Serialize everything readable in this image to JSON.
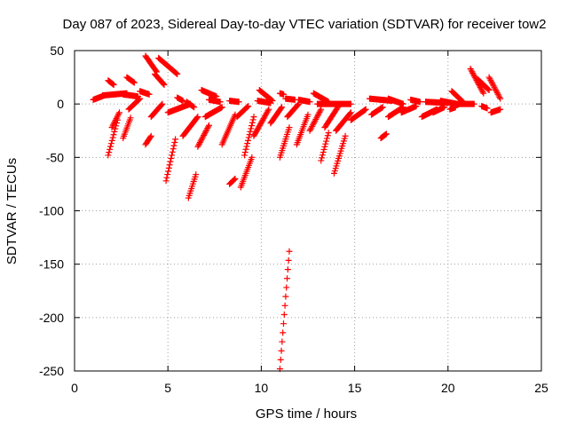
{
  "chart_data": {
    "type": "scatter",
    "title": "Day 087 of 2023, Sidereal Day-to-day VTEC variation (SDTVAR) for receiver tow2",
    "xlabel": "GPS time / hours",
    "ylabel": "SDTVAR / TECUs",
    "xlim": [
      0,
      25
    ],
    "ylim": [
      -250,
      50
    ],
    "xticks": [
      0,
      5,
      10,
      15,
      20,
      25
    ],
    "yticks": [
      50,
      0,
      -50,
      -100,
      -150,
      -200,
      -250
    ],
    "grid": true,
    "marker": "+",
    "color": "#ff0000",
    "segments": [
      {
        "x": [
          1.0,
          1.6
        ],
        "y": [
          4,
          8
        ]
      },
      {
        "x": [
          1.5,
          2.8
        ],
        "y": [
          8,
          10
        ]
      },
      {
        "x": [
          1.8,
          2.1
        ],
        "y": [
          22,
          18
        ]
      },
      {
        "x": [
          2.6,
          3.4
        ],
        "y": [
          9,
          7
        ]
      },
      {
        "x": [
          2.8,
          3.2
        ],
        "y": [
          25,
          20
        ]
      },
      {
        "x": [
          3.8,
          4.4
        ],
        "y": [
          45,
          30
        ]
      },
      {
        "x": [
          4.3,
          4.8
        ],
        "y": [
          28,
          18
        ]
      },
      {
        "x": [
          4.5,
          5.5
        ],
        "y": [
          43,
          28
        ]
      },
      {
        "x": [
          3.5,
          4.0
        ],
        "y": [
          12,
          9
        ]
      },
      {
        "x": [
          5.5,
          5.8
        ],
        "y": [
          6,
          3
        ]
      },
      {
        "x": [
          6.0,
          6.4
        ],
        "y": [
          2,
          -3
        ]
      },
      {
        "x": [
          6.8,
          7.6
        ],
        "y": [
          13,
          7
        ]
      },
      {
        "x": [
          7.2,
          7.8
        ],
        "y": [
          4,
          2
        ]
      },
      {
        "x": [
          8.3,
          8.8
        ],
        "y": [
          3,
          2
        ]
      },
      {
        "x": [
          9.8,
          10.5
        ],
        "y": [
          3,
          1
        ]
      },
      {
        "x": [
          9.9,
          10.6
        ],
        "y": [
          13,
          3
        ]
      },
      {
        "x": [
          11.0,
          11.2
        ],
        "y": [
          10,
          9
        ]
      },
      {
        "x": [
          11.3,
          11.8
        ],
        "y": [
          5,
          4
        ]
      },
      {
        "x": [
          12.0,
          12.6
        ],
        "y": [
          4,
          2
        ]
      },
      {
        "x": [
          12.8,
          13.6
        ],
        "y": [
          10,
          2
        ]
      },
      {
        "x": [
          13.0,
          14.8
        ],
        "y": [
          0,
          0
        ]
      },
      {
        "x": [
          15.8,
          17.0
        ],
        "y": [
          5,
          3
        ]
      },
      {
        "x": [
          16.8,
          17.6
        ],
        "y": [
          5,
          0
        ]
      },
      {
        "x": [
          18.0,
          18.5
        ],
        "y": [
          4,
          2
        ]
      },
      {
        "x": [
          18.8,
          20.0
        ],
        "y": [
          2,
          1
        ]
      },
      {
        "x": [
          19.6,
          20.5
        ],
        "y": [
          3,
          0
        ]
      },
      {
        "x": [
          20.2,
          20.8
        ],
        "y": [
          12,
          2
        ]
      },
      {
        "x": [
          20.5,
          21.4
        ],
        "y": [
          0,
          0
        ]
      },
      {
        "x": [
          21.2,
          21.9
        ],
        "y": [
          33,
          10
        ]
      },
      {
        "x": [
          21.6,
          22.2
        ],
        "y": [
          23,
          13
        ]
      },
      {
        "x": [
          22.2,
          22.8
        ],
        "y": [
          25,
          5
        ]
      },
      {
        "x": [
          22.3,
          22.8
        ],
        "y": [
          -8,
          -5
        ]
      },
      {
        "x": [
          21.8,
          22.1
        ],
        "y": [
          -2,
          -4
        ]
      },
      {
        "x": [
          1.8,
          2.3
        ],
        "y": [
          -48,
          -15
        ]
      },
      {
        "x": [
          2.0,
          2.4
        ],
        "y": [
          -22,
          -8
        ]
      },
      {
        "x": [
          2.6,
          3.0
        ],
        "y": [
          -32,
          -13
        ]
      },
      {
        "x": [
          2.9,
          3.5
        ],
        "y": [
          -5,
          5
        ]
      },
      {
        "x": [
          3.8,
          4.1
        ],
        "y": [
          -38,
          -30
        ]
      },
      {
        "x": [
          4.1,
          4.7
        ],
        "y": [
          -12,
          0
        ]
      },
      {
        "x": [
          4.9,
          5.4
        ],
        "y": [
          -72,
          -33
        ]
      },
      {
        "x": [
          5.0,
          6.2
        ],
        "y": [
          -8,
          0
        ]
      },
      {
        "x": [
          5.8,
          6.6
        ],
        "y": [
          -30,
          -12
        ]
      },
      {
        "x": [
          6.1,
          6.5
        ],
        "y": [
          -88,
          -66
        ]
      },
      {
        "x": [
          6.6,
          7.2
        ],
        "y": [
          -40,
          -20
        ]
      },
      {
        "x": [
          7.0,
          7.9
        ],
        "y": [
          -12,
          -3
        ]
      },
      {
        "x": [
          7.9,
          8.6
        ],
        "y": [
          -38,
          -10
        ]
      },
      {
        "x": [
          8.3,
          8.6
        ],
        "y": [
          -75,
          -70
        ]
      },
      {
        "x": [
          8.7,
          9.3
        ],
        "y": [
          -12,
          -2
        ]
      },
      {
        "x": [
          8.9,
          9.5
        ],
        "y": [
          -78,
          -50
        ]
      },
      {
        "x": [
          9.1,
          9.6
        ],
        "y": [
          -48,
          -12
        ]
      },
      {
        "x": [
          9.6,
          10.4
        ],
        "y": [
          -30,
          -5
        ]
      },
      {
        "x": [
          10.5,
          11.1
        ],
        "y": [
          -18,
          -3
        ]
      },
      {
        "x": [
          11.0,
          11.5
        ],
        "y": [
          -50,
          -22
        ]
      },
      {
        "x": [
          11.0,
          11.5
        ],
        "y": [
          -248,
          -138
        ]
      },
      {
        "x": [
          11.4,
          12.0
        ],
        "y": [
          -12,
          0
        ]
      },
      {
        "x": [
          11.9,
          12.5
        ],
        "y": [
          -38,
          -10
        ]
      },
      {
        "x": [
          12.6,
          13.2
        ],
        "y": [
          -25,
          -5
        ]
      },
      {
        "x": [
          13.2,
          13.6
        ],
        "y": [
          -53,
          -27
        ]
      },
      {
        "x": [
          13.4,
          14.1
        ],
        "y": [
          -22,
          -3
        ]
      },
      {
        "x": [
          13.9,
          14.5
        ],
        "y": [
          -65,
          -30
        ]
      },
      {
        "x": [
          14.0,
          14.8
        ],
        "y": [
          -25,
          -8
        ]
      },
      {
        "x": [
          14.8,
          15.6
        ],
        "y": [
          -15,
          -5
        ]
      },
      {
        "x": [
          15.9,
          16.5
        ],
        "y": [
          -10,
          -3
        ]
      },
      {
        "x": [
          16.4,
          16.7
        ],
        "y": [
          -32,
          -28
        ]
      },
      {
        "x": [
          16.8,
          17.6
        ],
        "y": [
          -12,
          -3
        ]
      },
      {
        "x": [
          17.5,
          18.3
        ],
        "y": [
          -8,
          -2
        ]
      },
      {
        "x": [
          18.6,
          19.4
        ],
        "y": [
          -12,
          -5
        ]
      },
      {
        "x": [
          19.2,
          19.8
        ],
        "y": [
          -8,
          -3
        ]
      },
      {
        "x": [
          20.1,
          20.4
        ],
        "y": [
          -5,
          -3
        ]
      }
    ]
  }
}
